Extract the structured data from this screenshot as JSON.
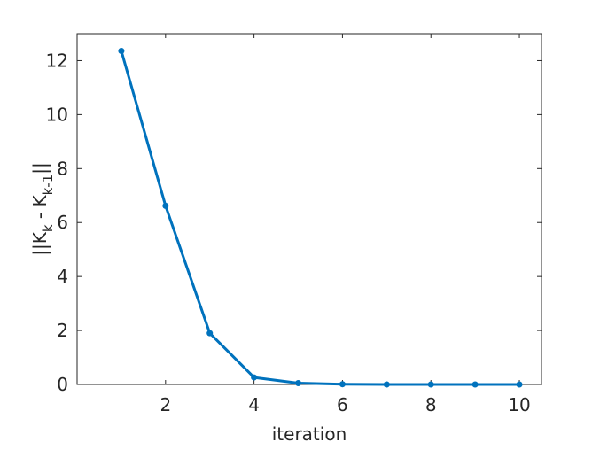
{
  "chart_data": {
    "type": "line",
    "x_label": "iteration",
    "y_label": [
      "||K",
      "k",
      " - K",
      "k-1",
      "||"
    ],
    "x": [
      1,
      2,
      3,
      4,
      5,
      6,
      7,
      8,
      9,
      10
    ],
    "series": [
      {
        "color": "#0072bd",
        "values": [
          12.36,
          6.62,
          1.9,
          0.26,
          0.05,
          0.01,
          0,
          0,
          0,
          0
        ]
      }
    ],
    "xlim": [
      0,
      10.5
    ],
    "ylim": [
      0,
      13
    ],
    "xticks": [
      2,
      4,
      6,
      8,
      10
    ],
    "yticks": [
      0,
      2,
      4,
      6,
      8,
      10,
      12
    ],
    "grid": false
  }
}
